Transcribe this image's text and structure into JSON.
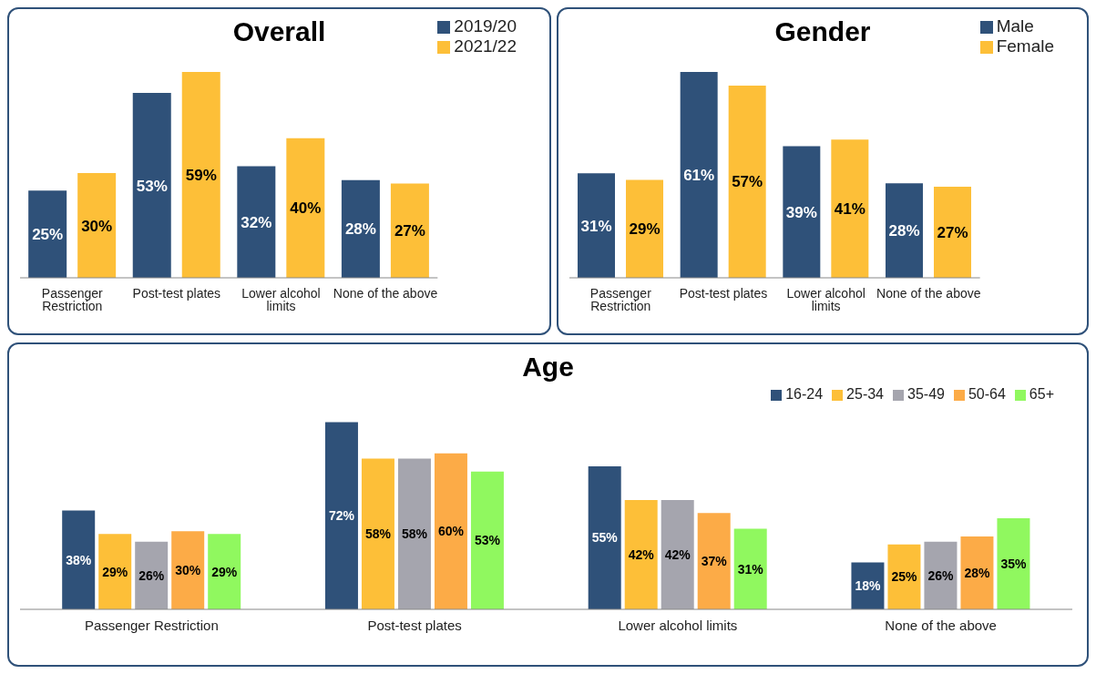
{
  "chart_data": [
    {
      "type": "bar",
      "title": "Overall",
      "categories": [
        "Passenger Restriction",
        "Post-test plates",
        "Lower alcohol limits",
        "None of the above"
      ],
      "legend": "top right",
      "series": [
        {
          "name": "2019/20",
          "color": "#2f5179",
          "values": [
            25,
            53,
            32,
            28
          ],
          "value_labels": [
            "25%",
            "53%",
            "32%",
            "28%"
          ]
        },
        {
          "name": "2021/22",
          "color": "#fdbf38",
          "values": [
            30,
            59,
            40,
            27
          ],
          "value_labels": [
            "30%",
            "59%",
            "40%",
            "27%"
          ]
        }
      ]
    },
    {
      "type": "bar",
      "title": "Gender",
      "categories": [
        "Passenger Restriction",
        "Post-test plates",
        "Lower alcohol limits",
        "None of the above"
      ],
      "legend": "top right",
      "series": [
        {
          "name": "Male",
          "color": "#2f5179",
          "values": [
            31,
            61,
            39,
            28
          ],
          "value_labels": [
            "31%",
            "61%",
            "39%",
            "28%"
          ]
        },
        {
          "name": "Female",
          "color": "#fdbf38",
          "values": [
            29,
            57,
            41,
            27
          ],
          "value_labels": [
            "29%",
            "57%",
            "41%",
            "27%"
          ]
        }
      ]
    },
    {
      "type": "bar",
      "title": "Age",
      "categories": [
        "Passenger Restriction",
        "Post-test plates",
        "Lower alcohol limits",
        "None of the above"
      ],
      "legend": "top right",
      "series": [
        {
          "name": "16-24",
          "color": "#2f5179",
          "values": [
            38,
            72,
            55,
            18
          ],
          "value_labels": [
            "38%",
            "72%",
            "55%",
            "18%"
          ]
        },
        {
          "name": "25-34",
          "color": "#fdbf38",
          "values": [
            29,
            58,
            42,
            25
          ],
          "value_labels": [
            "29%",
            "58%",
            "42%",
            "25%"
          ]
        },
        {
          "name": "35-49",
          "color": "#a5a5ae",
          "values": [
            26,
            58,
            42,
            26
          ],
          "value_labels": [
            "26%",
            "58%",
            "42%",
            "26%"
          ]
        },
        {
          "name": "50-64",
          "color": "#fcab47",
          "values": [
            30,
            60,
            37,
            28
          ],
          "value_labels": [
            "30%",
            "60%",
            "37%",
            "28%"
          ]
        },
        {
          "name": "65+",
          "color": "#90f85f",
          "values": [
            29,
            53,
            31,
            35
          ],
          "value_labels": [
            "29%",
            "53%",
            "31%",
            "35%"
          ]
        }
      ]
    }
  ]
}
